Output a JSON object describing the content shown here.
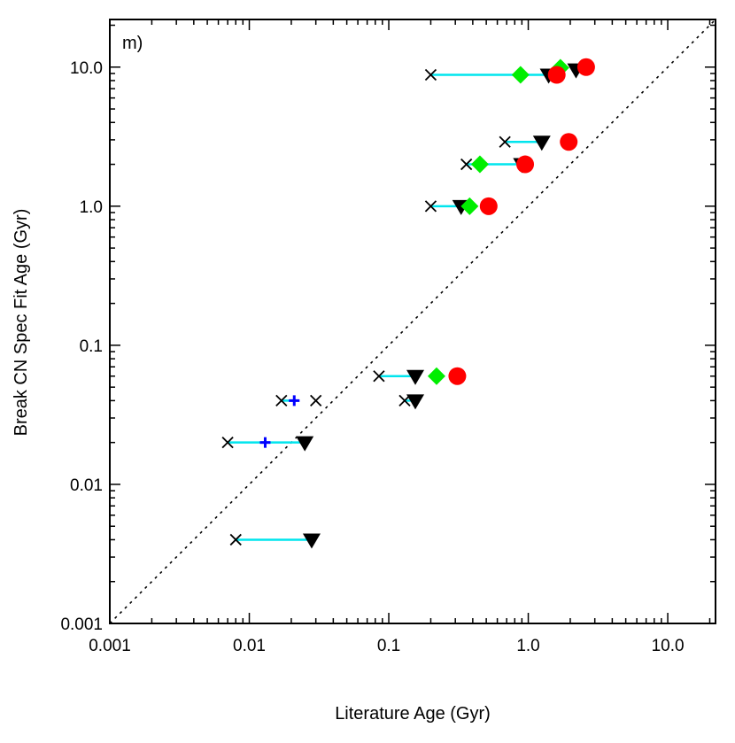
{
  "chart_data": {
    "type": "scatter",
    "panel_label": "m)",
    "xlabel": "Literature Age (Gyr)",
    "ylabel": "Break CN Spec Fit Age (Gyr)",
    "xscale": "log",
    "yscale": "log",
    "xlim": [
      0.001,
      22
    ],
    "ylim": [
      0.001,
      22
    ],
    "xticks": [
      {
        "value": 0.001,
        "label": "0.001"
      },
      {
        "value": 0.01,
        "label": "0.01"
      },
      {
        "value": 0.1,
        "label": "0.1"
      },
      {
        "value": 1.0,
        "label": "1.0"
      },
      {
        "value": 10.0,
        "label": "10.0"
      }
    ],
    "yticks": [
      {
        "value": 0.001,
        "label": "0.001"
      },
      {
        "value": 0.01,
        "label": "0.01"
      },
      {
        "value": 0.1,
        "label": "0.1"
      },
      {
        "value": 1.0,
        "label": "1.0"
      },
      {
        "value": 10.0,
        "label": "10.0"
      }
    ],
    "reference_line": {
      "type": "one-to-one",
      "style": "dotted"
    },
    "connectors": [
      {
        "y": 8.8,
        "x_from": 0.2,
        "x_to": 1.4
      },
      {
        "y": 2.9,
        "x_from": 0.68,
        "x_to": 1.25
      },
      {
        "y": 2.0,
        "x_from": 0.36,
        "x_to": 0.9
      },
      {
        "y": 1.0,
        "x_from": 0.2,
        "x_to": 0.33
      },
      {
        "y": 0.06,
        "x_from": 0.085,
        "x_to": 0.155
      },
      {
        "y": 0.04,
        "x_from": 0.13,
        "x_to": 0.155
      },
      {
        "y": 0.04,
        "x_from": 0.017,
        "x_to": 0.021
      },
      {
        "y": 0.02,
        "x_from": 0.007,
        "x_to": 0.025
      },
      {
        "y": 0.004,
        "x_from": 0.008,
        "x_to": 0.028
      }
    ],
    "series": [
      {
        "name": "cross",
        "marker": "x",
        "color": "#000000",
        "points": [
          [
            0.2,
            8.8
          ],
          [
            0.68,
            2.9
          ],
          [
            0.36,
            2.0
          ],
          [
            0.2,
            1.0
          ],
          [
            0.085,
            0.06
          ],
          [
            0.13,
            0.04
          ],
          [
            0.017,
            0.04
          ],
          [
            0.03,
            0.04
          ],
          [
            0.007,
            0.02
          ],
          [
            0.008,
            0.004
          ]
        ]
      },
      {
        "name": "plus",
        "marker": "+",
        "color": "#0000ff",
        "points": [
          [
            0.021,
            0.04
          ],
          [
            0.013,
            0.02
          ]
        ]
      },
      {
        "name": "triangle",
        "marker": "triangle-down",
        "color": "#000000",
        "points": [
          [
            1.4,
            8.8
          ],
          [
            2.2,
            9.6
          ],
          [
            1.25,
            2.9
          ],
          [
            0.9,
            2.0
          ],
          [
            0.33,
            1.0
          ],
          [
            0.155,
            0.06
          ],
          [
            0.155,
            0.04
          ],
          [
            0.025,
            0.02
          ],
          [
            0.028,
            0.004
          ]
        ]
      },
      {
        "name": "diamond",
        "marker": "diamond",
        "color": "#00ee00",
        "points": [
          [
            0.88,
            8.8
          ],
          [
            1.7,
            9.9
          ],
          [
            0.45,
            2.0
          ],
          [
            0.38,
            1.0
          ],
          [
            0.22,
            0.06
          ]
        ]
      },
      {
        "name": "circle",
        "marker": "circle",
        "color": "#ff0000",
        "points": [
          [
            1.6,
            8.8
          ],
          [
            2.6,
            10.0
          ],
          [
            1.95,
            2.9
          ],
          [
            0.95,
            2.0
          ],
          [
            0.52,
            1.0
          ],
          [
            0.31,
            0.06
          ]
        ]
      }
    ],
    "connector_color": "#00e5ee"
  }
}
